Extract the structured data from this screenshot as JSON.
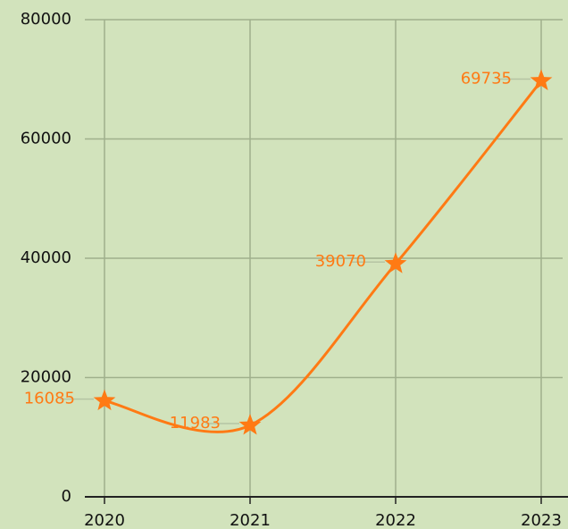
{
  "chart_data": {
    "type": "line",
    "categories": [
      "2020",
      "2021",
      "2022",
      "2023"
    ],
    "series": [
      {
        "name": "value",
        "color": "#ff7a14",
        "values": [
          16085,
          11983,
          39070,
          69735
        ]
      }
    ],
    "ylim": [
      0,
      80000
    ],
    "yticks": [
      0,
      20000,
      40000,
      60000,
      80000
    ],
    "grid": true
  }
}
